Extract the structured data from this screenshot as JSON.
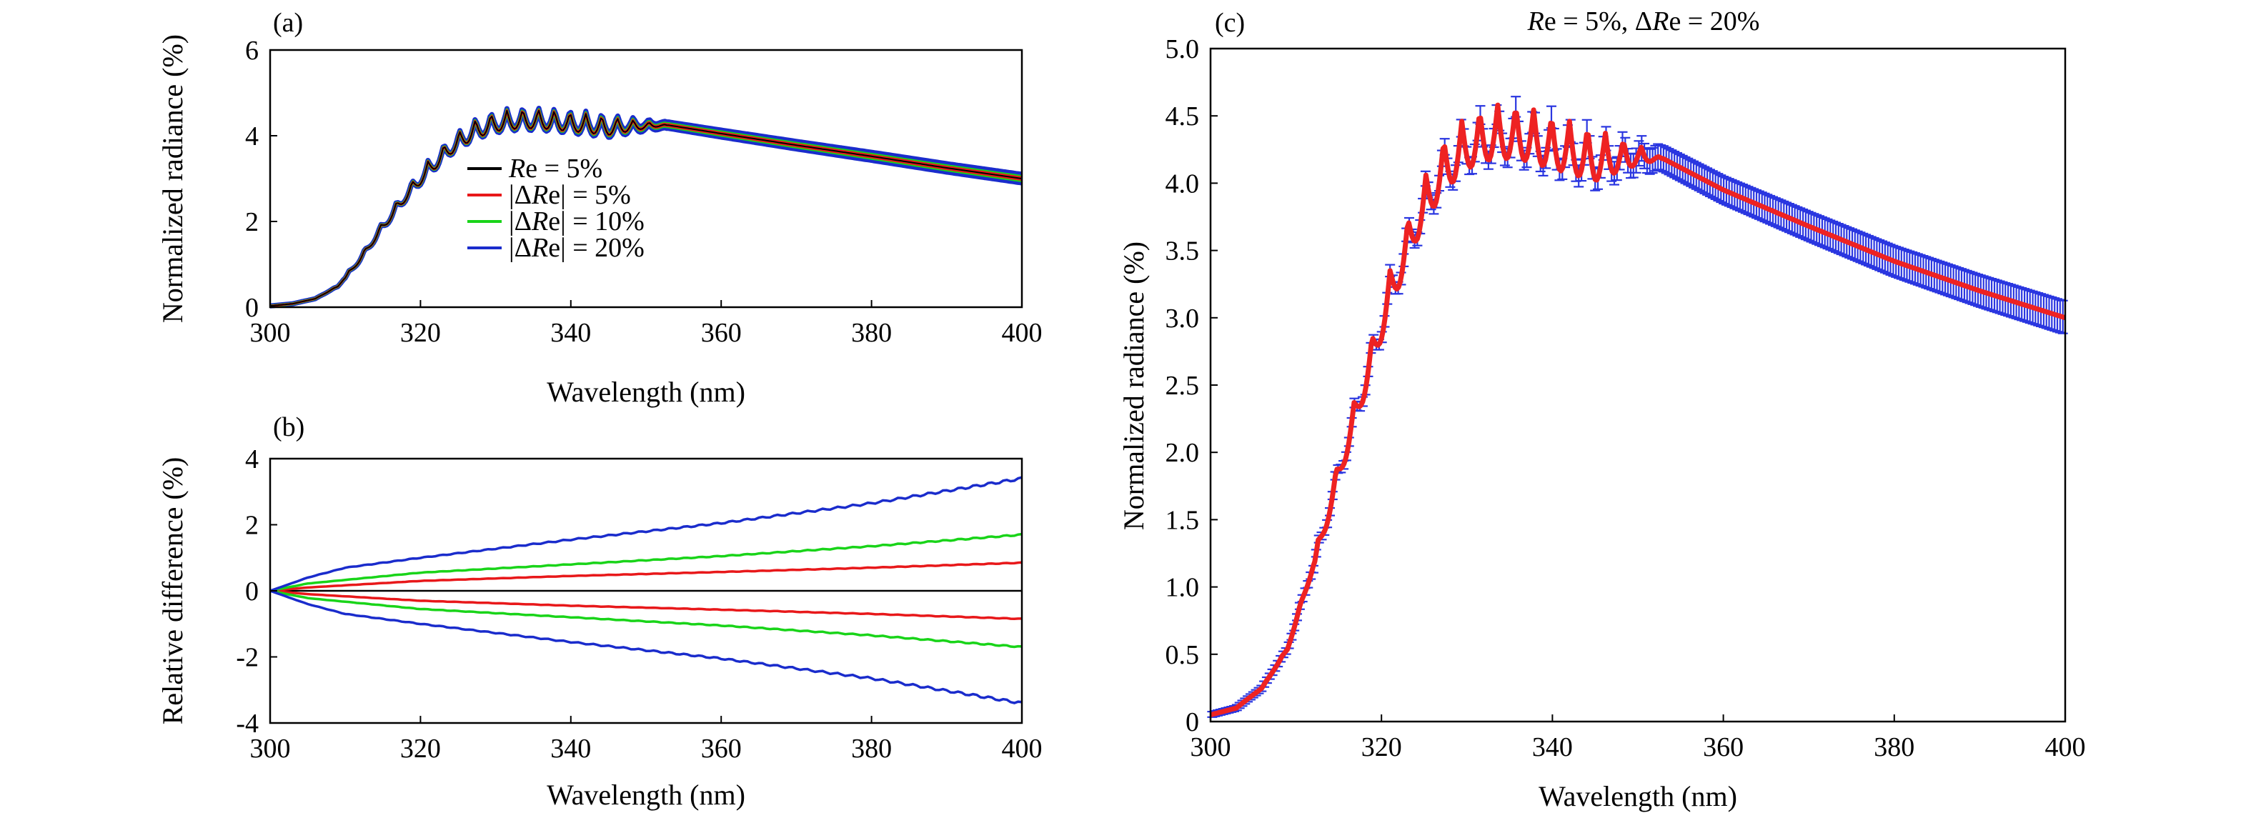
{
  "colors": {
    "black": "#000000",
    "red": "#e8181a",
    "green": "#19d419",
    "blue": "#1a2ccc",
    "blue_err": "#2a36e0",
    "red_fit": "#ee2222"
  },
  "chart_data": [
    {
      "id": "a",
      "type": "line",
      "panel_label": "(a)",
      "xlabel": "Wavelength (nm)",
      "ylabel": "Normalized radiance (%)",
      "xlim": [
        300,
        400
      ],
      "ylim": [
        0,
        6
      ],
      "xticks": [
        300,
        320,
        340,
        360,
        380,
        400
      ],
      "yticks": [
        0,
        2,
        4,
        6
      ],
      "legend": {
        "placement": "center-right",
        "entries": [
          {
            "italic": "R",
            "rest": "e = 5%",
            "color_key": "black"
          },
          {
            "bar_open": "|Δ",
            "italic": "R",
            "rest": "e| = 5%",
            "color_key": "red"
          },
          {
            "bar_open": "|Δ",
            "italic": "R",
            "rest": "e| = 10%",
            "color_key": "green"
          },
          {
            "bar_open": "|Δ",
            "italic": "R",
            "rest": "e| = 20%",
            "color_key": "blue"
          }
        ]
      },
      "envelope": {
        "x": [
          300,
          303,
          306,
          309,
          312,
          315,
          318,
          321,
          324,
          327,
          330,
          333,
          336,
          340,
          345,
          350,
          360,
          370,
          380,
          390,
          400
        ],
        "y": [
          0.03,
          0.08,
          0.2,
          0.5,
          1.2,
          2.0,
          2.75,
          3.4,
          3.95,
          4.35,
          4.55,
          4.62,
          4.62,
          4.55,
          4.45,
          4.33,
          4.05,
          3.78,
          3.52,
          3.25,
          3.0
        ]
      },
      "oscillation": {
        "amplitude": 0.45,
        "period_nm": 2.1,
        "damp_start": 310,
        "damp_end": 345
      },
      "series_spread_pct": {
        "black": 0,
        "red": 0.9,
        "green": 1.7,
        "blue": 3.4
      }
    },
    {
      "id": "b",
      "type": "line",
      "panel_label": "(b)",
      "xlabel": "Wavelength (nm)",
      "ylabel": "Relative difference (%)",
      "xlim": [
        300,
        400
      ],
      "ylim": [
        -4,
        4
      ],
      "xticks": [
        300,
        320,
        340,
        360,
        380,
        400
      ],
      "yticks": [
        -4,
        -2,
        0,
        2,
        4
      ],
      "series": [
        {
          "name": "Re = 5%",
          "color_key": "black",
          "x": [
            300,
            400
          ],
          "values": [
            0,
            0
          ]
        },
        {
          "name": "|ΔRe| = 5% (+)",
          "color_key": "red",
          "x": [
            300,
            305,
            320,
            340,
            360,
            380,
            400
          ],
          "values": [
            0,
            0.1,
            0.3,
            0.45,
            0.57,
            0.7,
            0.85
          ]
        },
        {
          "name": "|ΔRe| = 5% (−)",
          "color_key": "red",
          "x": [
            300,
            305,
            320,
            340,
            360,
            380,
            400
          ],
          "values": [
            0,
            -0.1,
            -0.3,
            -0.45,
            -0.57,
            -0.7,
            -0.85
          ]
        },
        {
          "name": "|ΔRe| = 10% (+)",
          "color_key": "green",
          "x": [
            300,
            305,
            320,
            340,
            360,
            380,
            400
          ],
          "values": [
            0,
            0.22,
            0.55,
            0.8,
            1.05,
            1.35,
            1.7
          ]
        },
        {
          "name": "|ΔRe| = 10% (−)",
          "color_key": "green",
          "x": [
            300,
            305,
            320,
            340,
            360,
            380,
            400
          ],
          "values": [
            0,
            -0.22,
            -0.55,
            -0.8,
            -1.05,
            -1.35,
            -1.7
          ]
        },
        {
          "name": "|ΔRe| = 20% (+)",
          "color_key": "blue",
          "x": [
            300,
            305,
            310,
            320,
            340,
            360,
            380,
            400
          ],
          "values": [
            0,
            0.4,
            0.7,
            1.0,
            1.55,
            2.05,
            2.65,
            3.4
          ]
        },
        {
          "name": "|ΔRe| = 20% (−)",
          "color_key": "blue",
          "x": [
            300,
            305,
            310,
            320,
            340,
            360,
            380,
            400
          ],
          "values": [
            0,
            -0.4,
            -0.7,
            -1.0,
            -1.55,
            -2.05,
            -2.65,
            -3.4
          ]
        }
      ]
    },
    {
      "id": "c",
      "type": "line",
      "panel_label": "(c)",
      "title": {
        "italic1": "R",
        "part1": "e = 5%, Δ",
        "italic2": "R",
        "part2": "e = 20%"
      },
      "xlabel": "Wavelength (nm)",
      "ylabel": "Normalized radiance (%)",
      "xlim": [
        300,
        400
      ],
      "ylim": [
        0,
        5
      ],
      "xticks": [
        300,
        320,
        340,
        360,
        380,
        400
      ],
      "yticks": [
        0,
        0.5,
        1.0,
        1.5,
        2.0,
        2.5,
        3.0,
        3.5,
        4.0,
        4.5,
        5.0
      ],
      "ytick_labels": [
        "0",
        "0.5",
        "1.0",
        "1.5",
        "2.0",
        "2.5",
        "3.0",
        "3.5",
        "4.0",
        "4.5",
        "5.0"
      ],
      "envelope": {
        "x": [
          300,
          303,
          306,
          309,
          312,
          315,
          318,
          321,
          324,
          327,
          330,
          333,
          336,
          340,
          345,
          350,
          360,
          370,
          380,
          390,
          400
        ],
        "y": [
          0.05,
          0.1,
          0.25,
          0.55,
          1.2,
          1.95,
          2.65,
          3.35,
          3.9,
          4.3,
          4.5,
          4.58,
          4.58,
          4.5,
          4.4,
          4.28,
          3.95,
          3.68,
          3.42,
          3.2,
          3.0
        ]
      },
      "oscillation": {
        "amplitude": 0.4,
        "period_nm": 2.1,
        "damp_start": 312,
        "damp_end": 345
      },
      "error_band_pct": 3.4
    }
  ]
}
